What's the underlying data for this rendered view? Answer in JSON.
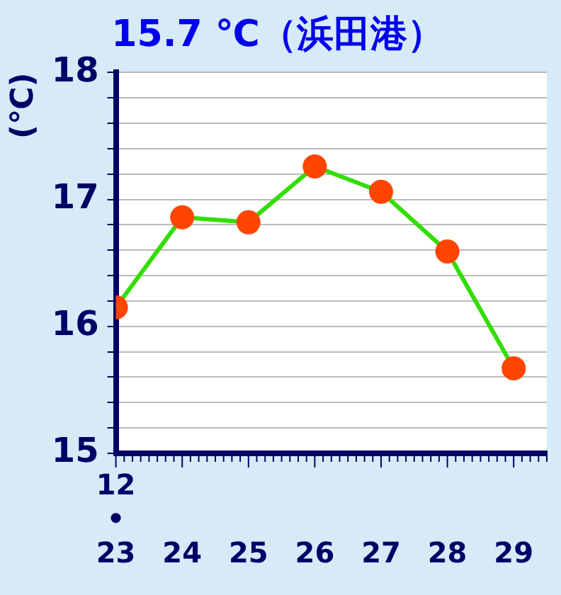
{
  "chart_data": {
    "type": "line",
    "title": "15.7 ℃（浜田港）",
    "ylabel": "(℃)",
    "categories": [
      "12\n•\n23",
      "24",
      "25",
      "26",
      "27",
      "28",
      "29"
    ],
    "series": [
      {
        "color": "#33dd00",
        "values": [
          16.15,
          16.86,
          16.82,
          17.26,
          17.06,
          16.59,
          15.67
        ]
      }
    ],
    "ylim": [
      15,
      18
    ],
    "yticks": [
      15,
      {
        "value": 15.2,
        "label": null
      },
      {
        "value": 15.4,
        "label": null
      },
      {
        "value": 15.6,
        "label": null
      },
      {
        "value": 15.8,
        "label": null
      },
      16,
      {
        "value": 16.2,
        "label": null
      },
      {
        "value": 16.4,
        "label": null
      },
      {
        "value": 16.6,
        "label": null
      },
      {
        "value": 16.8,
        "label": null
      },
      17,
      {
        "value": 17.2,
        "label": null
      },
      {
        "value": 17.4,
        "label": null
      },
      {
        "value": 17.6,
        "label": null
      },
      {
        "value": 17.8,
        "label": null
      },
      18
    ],
    "grid": "y",
    "marker": "circle",
    "line_style": "solid",
    "legend": false
  }
}
